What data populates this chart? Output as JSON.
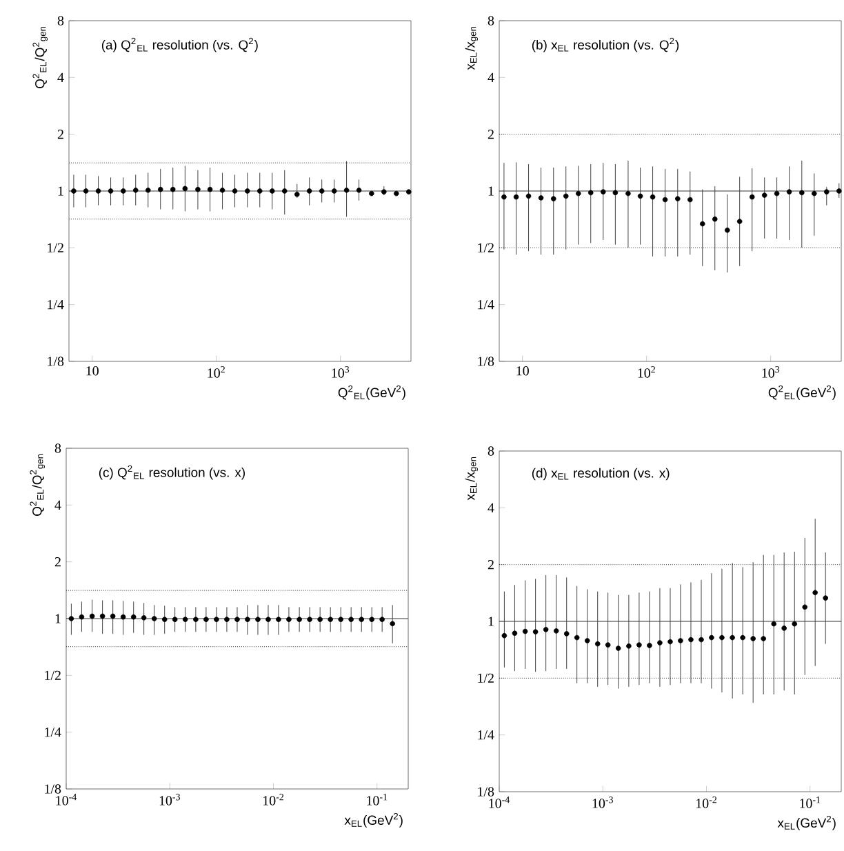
{
  "chart_data": [
    {
      "type": "scatter",
      "title": "(a) Q$^{2}$$_{EL}$ resolution (vs. Q$^{2}$)",
      "xlabel": "Q$^{2}$$_{EL}$(GeV$^{2}$)",
      "ylabel": "Q$^{2}$$_{EL}$/Q$^{2}$$_{gen}$",
      "log": "xy",
      "marker": "circle",
      "x": [
        7.1,
        8.9,
        11.2,
        14.1,
        17.8,
        22.4,
        28.2,
        35.5,
        44.7,
        56,
        71,
        89,
        112,
        141,
        178,
        224,
        282,
        355,
        447,
        562,
        708,
        891,
        1120,
        1410,
        1780,
        2240,
        2820,
        3550
      ],
      "series": [
        {
          "color": "#000000",
          "values": [
            1,
            1,
            1,
            1,
            1,
            1.01,
            1.01,
            1.02,
            1.02,
            1.03,
            1.02,
            1.02,
            1.01,
            1,
            1,
            1,
            1,
            1,
            0.96,
            1,
            1,
            1,
            1.01,
            1.01,
            0.97,
            0.99,
            0.97,
            0.99
          ],
          "errors": [
            [
              0.82,
              1.22
            ],
            [
              0.82,
              1.22
            ],
            [
              0.84,
              1.2
            ],
            [
              0.84,
              1.18
            ],
            [
              0.84,
              1.18
            ],
            [
              0.84,
              1.22
            ],
            [
              0.82,
              1.25
            ],
            [
              0.8,
              1.31
            ],
            [
              0.8,
              1.33
            ],
            [
              0.78,
              1.36
            ],
            [
              0.8,
              1.29
            ],
            [
              0.78,
              1.33
            ],
            [
              0.8,
              1.25
            ],
            [
              0.82,
              1.22
            ],
            [
              0.82,
              1.25
            ],
            [
              0.82,
              1.25
            ],
            [
              0.8,
              1.25
            ],
            [
              0.75,
              1.29
            ],
            [
              0.92,
              1.09
            ],
            [
              0.84,
              1.18
            ],
            [
              0.87,
              1.15
            ],
            [
              0.87,
              1.15
            ],
            [
              0.73,
              1.44
            ],
            [
              0.89,
              1.15
            ],
            null,
            [
              0.95,
              1.06
            ],
            null,
            null
          ]
        }
      ],
      "xlim": [
        6.5,
        3700
      ],
      "ylim": [
        0.125,
        8
      ],
      "xticks": [
        {
          "value": 10,
          "label": "10"
        },
        {
          "value": 100,
          "label": "10$^{2}$"
        },
        {
          "value": 1000,
          "label": "10$^{3}$"
        }
      ],
      "yticks": [
        {
          "value": 0.125,
          "label": "1/8"
        },
        {
          "value": 0.25,
          "label": "1/4"
        },
        {
          "value": 0.5,
          "label": "1/2"
        },
        1,
        2,
        4,
        8
      ],
      "ref_lines": [
        {
          "axis": "y",
          "value": 1.41,
          "line_style": "dotted"
        },
        {
          "axis": "y",
          "value": 0.71,
          "line_style": "dotted"
        },
        {
          "axis": "y",
          "value": 1,
          "line_style": "solid"
        }
      ]
    },
    {
      "type": "scatter",
      "title": "(b) x$_{EL}$ resolution (vs. Q$^{2}$)",
      "xlabel": "Q$^{2}$$_{EL}$(GeV$^{2}$)",
      "ylabel": "x$_{EL}$/x$_{gen}$",
      "log": "xy",
      "marker": "circle",
      "x": [
        7.1,
        8.9,
        11.2,
        14.1,
        17.8,
        22.4,
        28.2,
        35.5,
        44.7,
        56,
        71,
        89,
        112,
        141,
        178,
        224,
        282,
        355,
        447,
        562,
        708,
        891,
        1120,
        1410,
        1780,
        2240,
        2820,
        3550
      ],
      "series": [
        {
          "color": "#000000",
          "values": [
            0.93,
            0.93,
            0.94,
            0.92,
            0.91,
            0.94,
            0.97,
            0.98,
            0.99,
            0.98,
            0.97,
            0.94,
            0.93,
            0.9,
            0.91,
            0.9,
            0.67,
            0.71,
            0.62,
            0.69,
            0.93,
            0.95,
            0.97,
            0.99,
            0.98,
            0.97,
            0.99,
            1.0
          ],
          "errors": [
            [
              0.49,
              1.41
            ],
            [
              0.46,
              1.42
            ],
            [
              0.48,
              1.39
            ],
            [
              0.46,
              1.33
            ],
            [
              0.46,
              1.33
            ],
            [
              0.49,
              1.35
            ],
            [
              0.52,
              1.36
            ],
            [
              0.53,
              1.39
            ],
            [
              0.55,
              1.41
            ],
            [
              0.52,
              1.39
            ],
            [
              0.5,
              1.45
            ],
            [
              0.52,
              1.33
            ],
            [
              0.45,
              1.35
            ],
            [
              0.45,
              1.31
            ],
            [
              0.45,
              1.31
            ],
            [
              0.46,
              1.27
            ],
            [
              0.4,
              1.02
            ],
            [
              0.38,
              1.06
            ],
            [
              0.37,
              0.96
            ],
            [
              0.4,
              1.19
            ],
            [
              0.48,
              1.32
            ],
            [
              0.56,
              1.18
            ],
            [
              0.56,
              1.18
            ],
            [
              0.55,
              1.35
            ],
            [
              0.5,
              1.45
            ],
            [
              0.58,
              1.24
            ],
            [
              0.84,
              1.05
            ],
            [
              0.92,
              1.1
            ]
          ]
        }
      ],
      "xlim": [
        6.5,
        3700
      ],
      "ylim": [
        0.125,
        8
      ],
      "xticks": [
        {
          "value": 10,
          "label": "10"
        },
        {
          "value": 100,
          "label": "10$^{2}$"
        },
        {
          "value": 1000,
          "label": "10$^{3}$"
        }
      ],
      "yticks": [
        {
          "value": 0.125,
          "label": "1/8"
        },
        {
          "value": 0.25,
          "label": "1/4"
        },
        {
          "value": 0.5,
          "label": "1/2"
        },
        1,
        2,
        4,
        8
      ],
      "ref_lines": [
        {
          "axis": "y",
          "value": 2,
          "line_style": "dotted"
        },
        {
          "axis": "y",
          "value": 0.5,
          "line_style": "dotted"
        },
        {
          "axis": "y",
          "value": 1,
          "line_style": "solid"
        }
      ]
    },
    {
      "type": "scatter",
      "title": "(c) Q$^{2}$$_{EL}$ resolution (vs. x)",
      "xlabel": "x$_{EL}$(GeV$^{2}$)",
      "ylabel": "Q$^{2}$$_{EL}$/Q$^{2}$$_{gen}$",
      "log": "xy",
      "marker": "circle",
      "x": [
        0.000112,
        0.000141,
        0.000178,
        0.000224,
        0.000282,
        0.000355,
        0.000447,
        0.000562,
        0.000708,
        0.000891,
        0.00112,
        0.00141,
        0.00178,
        0.00224,
        0.00282,
        0.00355,
        0.00447,
        0.00562,
        0.00708,
        0.00891,
        0.0112,
        0.0141,
        0.0178,
        0.0224,
        0.0282,
        0.0355,
        0.0447,
        0.0562,
        0.0708,
        0.0891,
        0.112,
        0.141
      ],
      "series": [
        {
          "color": "#000000",
          "values": [
            1.0,
            1.02,
            1.03,
            1.03,
            1.03,
            1.02,
            1.02,
            1.01,
            1.0,
            0.99,
            0.99,
            0.99,
            0.99,
            0.99,
            0.99,
            0.99,
            0.99,
            0.99,
            0.99,
            0.99,
            0.99,
            0.99,
            0.99,
            0.99,
            0.99,
            0.99,
            0.99,
            0.99,
            0.99,
            0.99,
            0.99,
            0.94
          ],
          "errors": [
            [
              0.82,
              1.2
            ],
            [
              0.85,
              1.23
            ],
            [
              0.85,
              1.26
            ],
            [
              0.83,
              1.25
            ],
            [
              0.83,
              1.25
            ],
            [
              0.82,
              1.24
            ],
            [
              0.84,
              1.23
            ],
            [
              0.82,
              1.21
            ],
            [
              0.82,
              1.18
            ],
            [
              0.83,
              1.17
            ],
            [
              0.85,
              1.15
            ],
            [
              0.85,
              1.15
            ],
            [
              0.85,
              1.15
            ],
            [
              0.85,
              1.15
            ],
            [
              0.85,
              1.15
            ],
            [
              0.85,
              1.15
            ],
            [
              0.85,
              1.15
            ],
            [
              0.82,
              1.18
            ],
            [
              0.82,
              1.18
            ],
            [
              0.82,
              1.18
            ],
            [
              0.82,
              1.18
            ],
            [
              0.85,
              1.15
            ],
            [
              0.85,
              1.15
            ],
            [
              0.85,
              1.15
            ],
            [
              0.85,
              1.15
            ],
            [
              0.85,
              1.15
            ],
            [
              0.85,
              1.15
            ],
            [
              0.85,
              1.15
            ],
            [
              0.85,
              1.15
            ],
            [
              0.85,
              1.15
            ],
            [
              0.85,
              1.15
            ],
            [
              0.74,
              1.18
            ]
          ]
        }
      ],
      "xlim": [
        0.0001,
        0.2
      ],
      "ylim": [
        0.125,
        8
      ],
      "xticks": [
        {
          "value": 0.0001,
          "label": "10$^{-4}$"
        },
        {
          "value": 0.001,
          "label": "10$^{-3}$"
        },
        {
          "value": 0.01,
          "label": "10$^{-2}$"
        },
        {
          "value": 0.1,
          "label": "10$^{-1}$"
        }
      ],
      "yticks": [
        {
          "value": 0.125,
          "label": "1/8"
        },
        {
          "value": 0.25,
          "label": "1/4"
        },
        {
          "value": 0.5,
          "label": "1/2"
        },
        1,
        2,
        4,
        8
      ],
      "ref_lines": [
        {
          "axis": "y",
          "value": 1.41,
          "line_style": "dotted"
        },
        {
          "axis": "y",
          "value": 0.71,
          "line_style": "dotted"
        },
        {
          "axis": "y",
          "value": 1,
          "line_style": "solid"
        }
      ]
    },
    {
      "type": "scatter",
      "title": "(d) x$_{EL}$ resolution (vs. x)",
      "xlabel": "x$_{EL}$(GeV$^{2}$)",
      "ylabel": "x$_{EL}$/x$_{gen}$",
      "log": "xy",
      "marker": "circle",
      "x": [
        0.000112,
        0.000141,
        0.000178,
        0.000224,
        0.000282,
        0.000355,
        0.000447,
        0.000562,
        0.000708,
        0.000891,
        0.00112,
        0.00141,
        0.00178,
        0.00224,
        0.00282,
        0.00355,
        0.00447,
        0.00562,
        0.00708,
        0.00891,
        0.0112,
        0.0141,
        0.0178,
        0.0224,
        0.0282,
        0.0355,
        0.0447,
        0.0562,
        0.0708,
        0.0891,
        0.112,
        0.141
      ],
      "series": [
        {
          "color": "#000000",
          "values": [
            0.84,
            0.865,
            0.885,
            0.88,
            0.905,
            0.89,
            0.86,
            0.82,
            0.79,
            0.76,
            0.75,
            0.72,
            0.74,
            0.75,
            0.745,
            0.77,
            0.78,
            0.79,
            0.8,
            0.8,
            0.82,
            0.82,
            0.82,
            0.82,
            0.81,
            0.81,
            0.97,
            0.92,
            0.97,
            1.19,
            1.42,
            1.33
          ],
          "errors": [
            [
              0.57,
              1.44
            ],
            [
              0.545,
              1.56
            ],
            [
              0.56,
              1.65
            ],
            [
              0.54,
              1.68
            ],
            [
              0.545,
              1.76
            ],
            [
              0.56,
              1.76
            ],
            [
              0.56,
              1.71
            ],
            [
              0.47,
              1.54
            ],
            [
              0.47,
              1.48
            ],
            [
              0.45,
              1.44
            ],
            [
              0.46,
              1.42
            ],
            [
              0.44,
              1.38
            ],
            [
              0.45,
              1.38
            ],
            [
              0.46,
              1.42
            ],
            [
              0.47,
              1.44
            ],
            [
              0.45,
              1.5
            ],
            [
              0.46,
              1.5
            ],
            [
              0.47,
              1.57
            ],
            [
              0.47,
              1.61
            ],
            [
              0.47,
              1.66
            ],
            [
              0.44,
              1.8
            ],
            [
              0.42,
              1.9
            ],
            [
              0.39,
              2.04
            ],
            [
              0.41,
              1.94
            ],
            [
              0.37,
              2.06
            ],
            [
              0.41,
              2.25
            ],
            [
              0.41,
              2.25
            ],
            [
              0.43,
              2.32
            ],
            [
              0.41,
              2.34
            ],
            [
              0.52,
              2.77
            ],
            [
              0.58,
              3.5
            ],
            [
              0.76,
              2.32
            ]
          ]
        }
      ],
      "xlim": [
        0.0001,
        0.2
      ],
      "ylim": [
        0.125,
        8
      ],
      "xticks": [
        {
          "value": 0.0001,
          "label": "10$^{-4}$"
        },
        {
          "value": 0.001,
          "label": "10$^{-3}$"
        },
        {
          "value": 0.01,
          "label": "10$^{-2}$"
        },
        {
          "value": 0.1,
          "label": "10$^{-1}$"
        }
      ],
      "yticks": [
        {
          "value": 0.125,
          "label": "1/8"
        },
        {
          "value": 0.25,
          "label": "1/4"
        },
        {
          "value": 0.5,
          "label": "1/2"
        },
        1,
        2,
        4,
        8
      ],
      "ref_lines": [
        {
          "axis": "y",
          "value": 2,
          "line_style": "dotted"
        },
        {
          "axis": "y",
          "value": 0.5,
          "line_style": "dotted"
        },
        {
          "axis": "y",
          "value": 1,
          "line_style": "solid"
        }
      ]
    }
  ]
}
